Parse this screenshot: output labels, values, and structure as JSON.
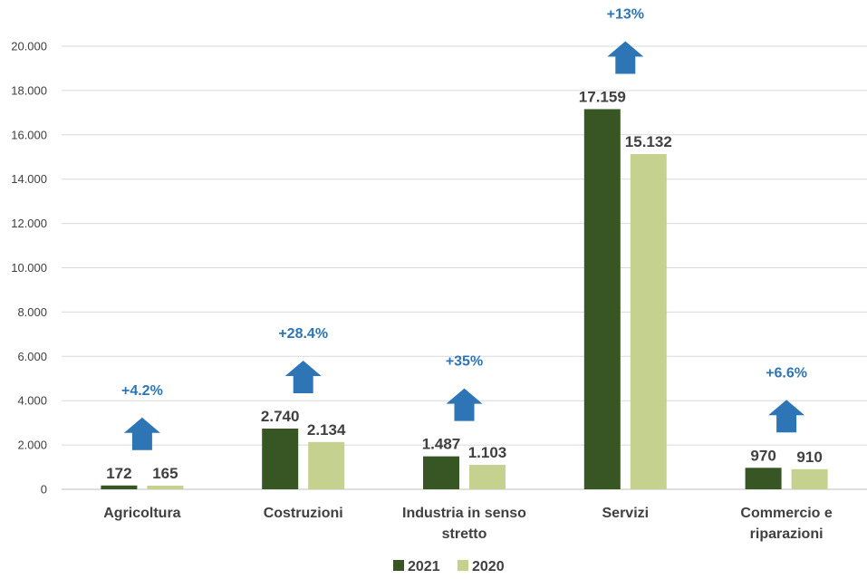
{
  "chart_data": {
    "type": "bar",
    "categories": [
      [
        "Agricoltura"
      ],
      [
        "Costruzioni"
      ],
      [
        "Industria in senso",
        "stretto"
      ],
      [
        "Servizi"
      ],
      [
        "Commercio e",
        "riparazioni"
      ]
    ],
    "series": [
      {
        "name": "2021",
        "color": "#375623",
        "values": [
          172,
          2740,
          1487,
          17159,
          970
        ],
        "labels": [
          "172",
          "2.740",
          "1.487",
          "17.159",
          "970"
        ]
      },
      {
        "name": "2020",
        "color": "#c4d18f",
        "values": [
          165,
          2134,
          1103,
          15132,
          910
        ],
        "labels": [
          "165",
          "2.134",
          "1.103",
          "15.132",
          "910"
        ]
      }
    ],
    "annotations": [
      "+4.2%",
      "+28.4%",
      "+35%",
      "+13%",
      "+6.6%"
    ],
    "annotation_color": "#2e75b6",
    "arrow_icon": "up-arrow-icon",
    "ylim": [
      0,
      20000
    ],
    "yticks": [
      0,
      2000,
      4000,
      6000,
      8000,
      10000,
      12000,
      14000,
      16000,
      18000,
      20000
    ],
    "ytick_labels": [
      "0",
      "2.000",
      "4.000",
      "6.000",
      "8.000",
      "10.000",
      "12.000",
      "14.000",
      "16.000",
      "18.000",
      "20.000"
    ],
    "grid": true,
    "legend_position": "bottom"
  }
}
